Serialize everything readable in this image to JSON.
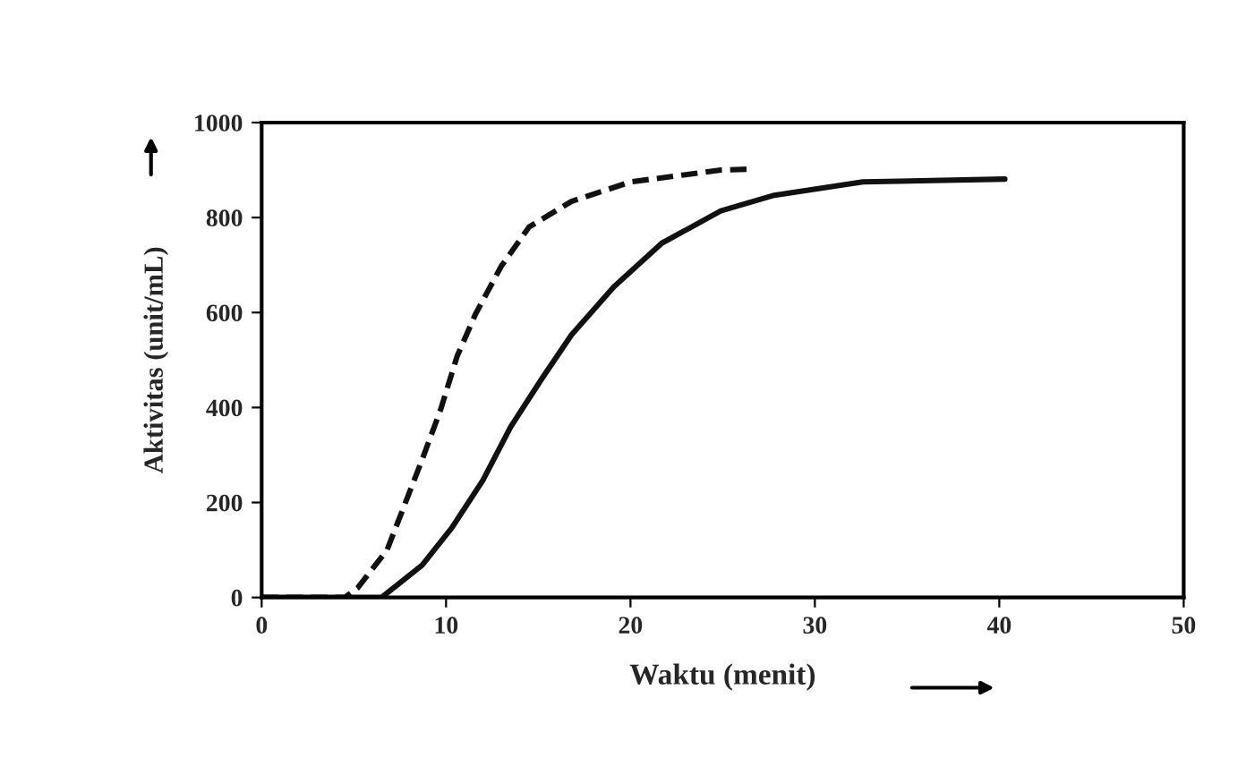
{
  "chart_data": {
    "type": "line",
    "xlabel": "Waktu (menit)",
    "ylabel": "Aktivitas (unit/mL)",
    "xlim": [
      0,
      50
    ],
    "ylim": [
      0,
      1000
    ],
    "xticks": [
      0,
      10,
      20,
      30,
      40,
      50
    ],
    "yticks": [
      0,
      200,
      400,
      600,
      800,
      1000
    ],
    "grid": false,
    "marker": "none",
    "series": [
      {
        "color": "#111111",
        "line_style": "dashed",
        "x": [
          0,
          4.5,
          5.2,
          6.8,
          7.7,
          8.7,
          9.7,
          10.6,
          11.6,
          13.0,
          14.5,
          16.8,
          20.0,
          24.9,
          26.5
        ],
        "values": [
          0,
          0,
          20,
          100,
          190,
          290,
          395,
          508,
          597,
          698,
          780,
          834,
          875,
          900,
          902
        ]
      },
      {
        "color": "#111111",
        "line_style": "solid",
        "x": [
          0,
          6.5,
          8.7,
          10.3,
          12.0,
          13.5,
          15.2,
          16.8,
          19.1,
          21.7,
          24.9,
          27.8,
          32.6,
          40.3
        ],
        "values": [
          0,
          0,
          68,
          146,
          247,
          359,
          461,
          553,
          654,
          746,
          814,
          847,
          875,
          881
        ]
      }
    ]
  }
}
